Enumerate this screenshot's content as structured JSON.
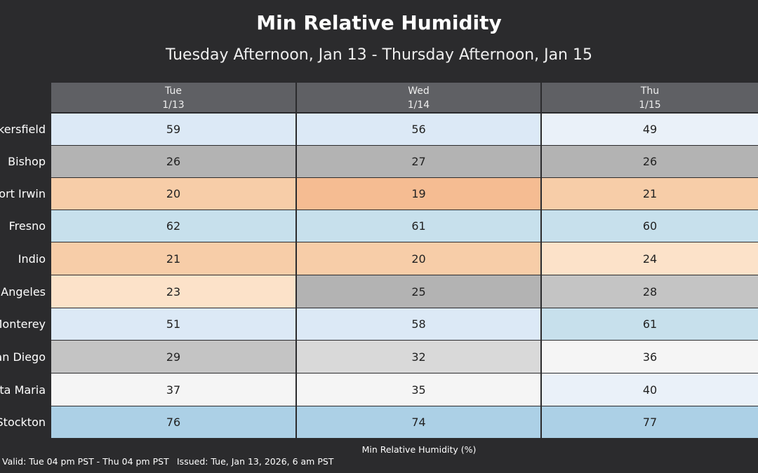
{
  "header": {
    "title": "Min Relative Humidity",
    "subtitle": "Tuesday Afternoon, Jan 13 - Thursday Afternoon, Jan 15"
  },
  "table": {
    "columns": [
      {
        "day": "Tue",
        "date": "1/13"
      },
      {
        "day": "Wed",
        "date": "1/14"
      },
      {
        "day": "Thu",
        "date": "1/15"
      }
    ],
    "rows": [
      {
        "label": "Bakersfield",
        "values": [
          59,
          56,
          49
        ],
        "colors": [
          "#dce9f6",
          "#dce9f6",
          "#eaf1f9"
        ]
      },
      {
        "label": "Bishop",
        "values": [
          26,
          27,
          26
        ],
        "colors": [
          "#b3b3b3",
          "#b3b3b3",
          "#b3b3b3"
        ]
      },
      {
        "label": "Fort Irwin",
        "values": [
          20,
          19,
          21
        ],
        "colors": [
          "#f7cda8",
          "#f5bc92",
          "#f7cda8"
        ]
      },
      {
        "label": "Fresno",
        "values": [
          62,
          61,
          60
        ],
        "colors": [
          "#c7e0ec",
          "#c7e0ec",
          "#c7e0ec"
        ]
      },
      {
        "label": "Indio",
        "values": [
          21,
          20,
          24
        ],
        "colors": [
          "#f7cda8",
          "#f7cda8",
          "#fce2c9"
        ]
      },
      {
        "label": "Los Angeles",
        "values": [
          23,
          25,
          28
        ],
        "colors": [
          "#fce2c9",
          "#b3b3b3",
          "#c4c4c4"
        ]
      },
      {
        "label": "Monterey",
        "values": [
          51,
          58,
          61
        ],
        "colors": [
          "#dce9f6",
          "#dce9f6",
          "#c7e0ec"
        ]
      },
      {
        "label": "San Diego",
        "values": [
          29,
          32,
          36
        ],
        "colors": [
          "#c4c4c4",
          "#d9d9d9",
          "#f5f5f5"
        ]
      },
      {
        "label": "Santa Maria",
        "values": [
          37,
          35,
          40
        ],
        "colors": [
          "#f5f5f5",
          "#f5f5f5",
          "#eaf1f9"
        ]
      },
      {
        "label": "Stockton",
        "values": [
          76,
          74,
          77
        ],
        "colors": [
          "#acd0e6",
          "#acd0e6",
          "#acd0e6"
        ]
      }
    ]
  },
  "footer": {
    "legend": "Min Relative Humidity (%)",
    "valid": "Valid: Tue 04 pm PST - Thu 04 pm PST",
    "issued": "Issued: Tue, Jan 13, 2026, 6 am PST"
  }
}
